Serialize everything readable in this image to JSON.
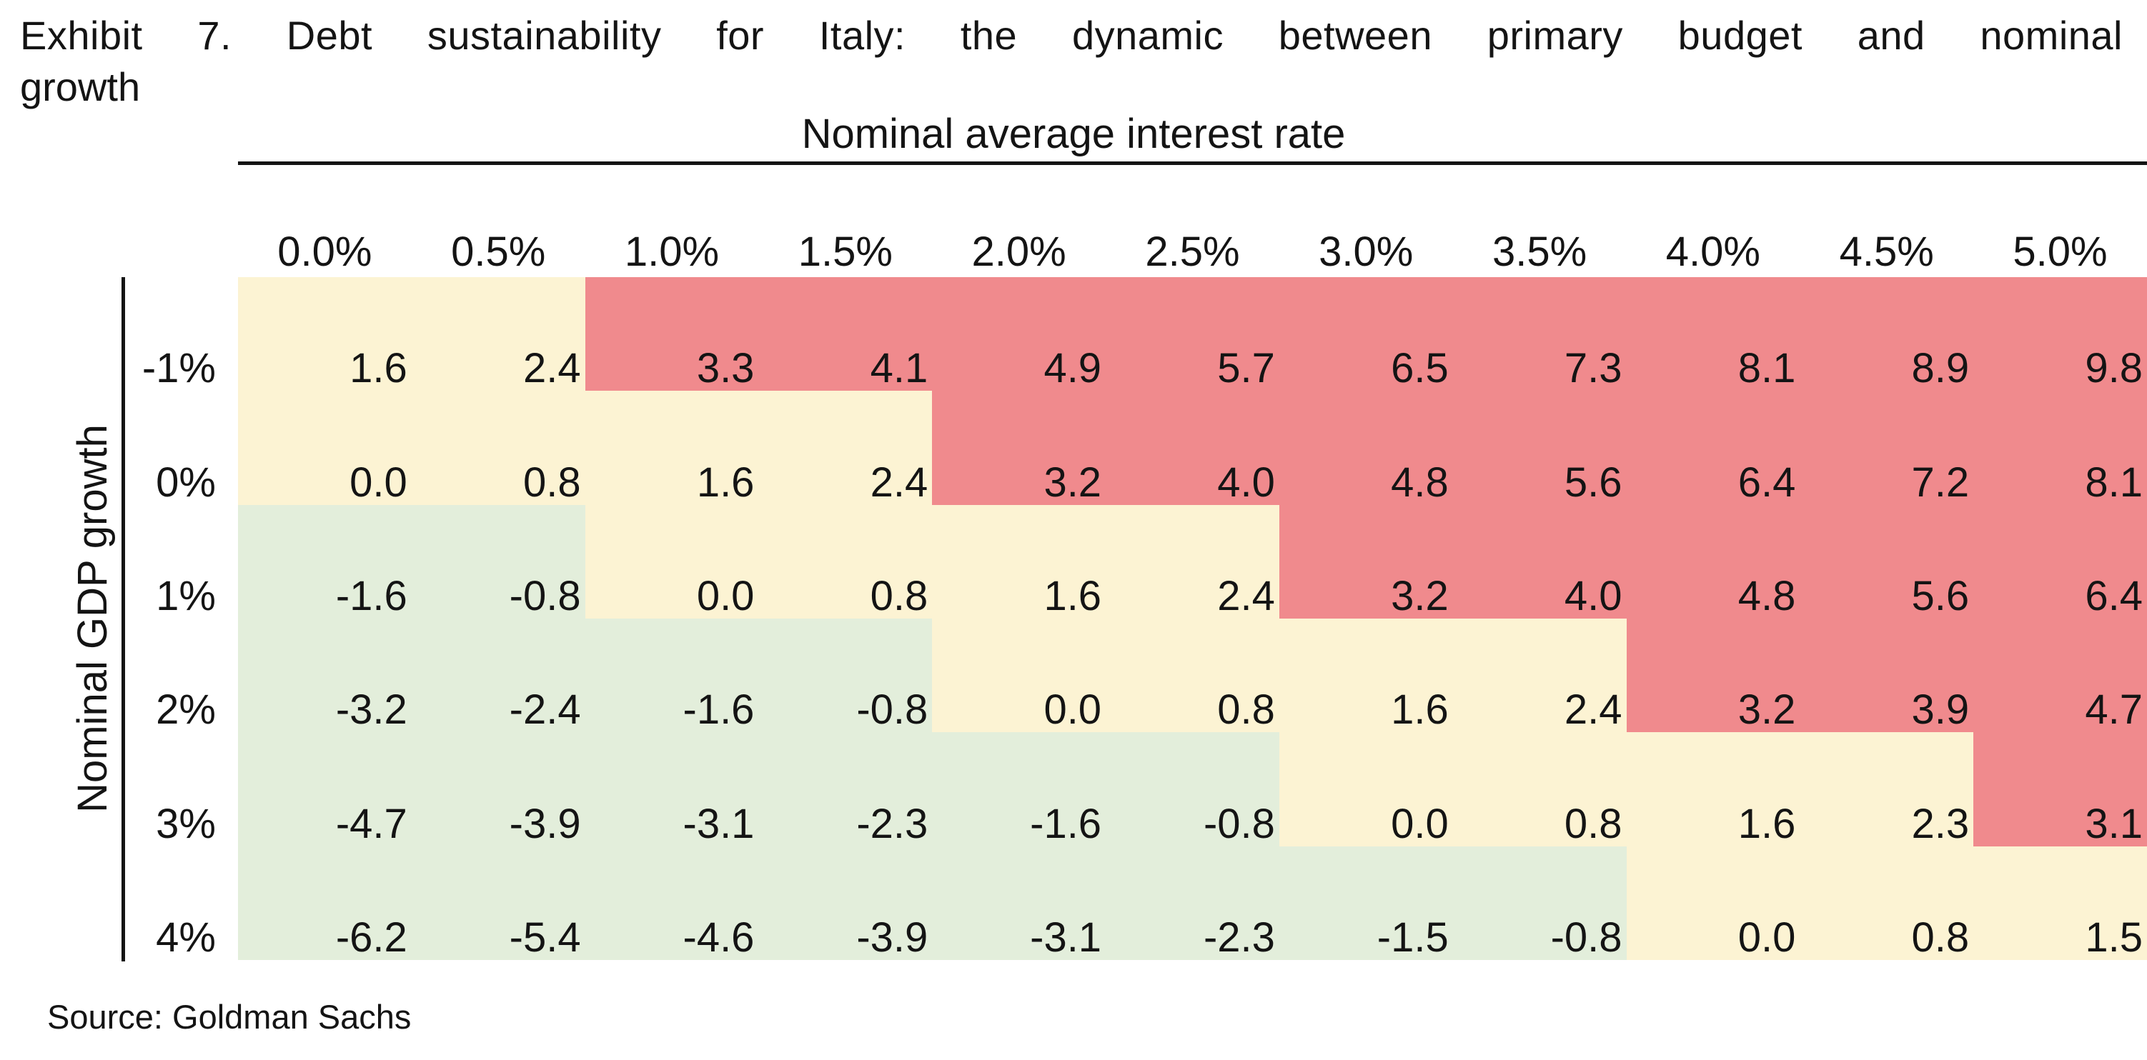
{
  "title": {
    "line1": "Exhibit 7. Debt sustainability for Italy: the dynamic between primary budget and nominal",
    "line2": "growth",
    "full": "Exhibit 7. Debt sustainability for Italy: the dynamic between primary budget and nominal growth"
  },
  "axes": {
    "top_label": "Nominal average interest rate",
    "left_label": "Nominal GDP growth"
  },
  "source": "Source: Goldman Sachs",
  "palette": {
    "red": "#f08a8d",
    "yellow": "#fcf3d3",
    "green": "#e3eedb",
    "rule": "#141414",
    "text": "#141414",
    "background": "#ffffff"
  },
  "chart_data": {
    "type": "heatmap",
    "title": "Exhibit 7. Debt sustainability for Italy: the dynamic between primary budget and nominal growth",
    "x_label": "Nominal average interest rate",
    "y_label": "Nominal GDP growth",
    "columns": [
      "0.0%",
      "0.5%",
      "1.0%",
      "1.5%",
      "2.0%",
      "2.5%",
      "3.0%",
      "3.5%",
      "4.0%",
      "4.5%",
      "5.0%"
    ],
    "rows": [
      "-1%",
      "0%",
      "1%",
      "2%",
      "3%",
      "4%"
    ],
    "values": [
      [
        1.6,
        2.4,
        3.3,
        4.1,
        4.9,
        5.7,
        6.5,
        7.3,
        8.1,
        8.9,
        9.8
      ],
      [
        0.0,
        0.8,
        1.6,
        2.4,
        3.2,
        4.0,
        4.8,
        5.6,
        6.4,
        7.2,
        8.1
      ],
      [
        -1.6,
        -0.8,
        0.0,
        0.8,
        1.6,
        2.4,
        3.2,
        4.0,
        4.8,
        5.6,
        6.4
      ],
      [
        -3.2,
        -2.4,
        -1.6,
        -0.8,
        0.0,
        0.8,
        1.6,
        2.4,
        3.2,
        3.9,
        4.7
      ],
      [
        -4.7,
        -3.9,
        -3.1,
        -2.3,
        -1.6,
        -0.8,
        0.0,
        0.8,
        1.6,
        2.3,
        3.1
      ],
      [
        -6.2,
        -5.4,
        -4.6,
        -3.9,
        -3.1,
        -2.3,
        -1.5,
        -0.8,
        0.0,
        0.8,
        1.5
      ]
    ],
    "values_display": [
      [
        "1.6",
        "2.4",
        "3.3",
        "4.1",
        "4.9",
        "5.7",
        "6.5",
        "7.3",
        "8.1",
        "8.9",
        "9.8"
      ],
      [
        "0.0",
        "0.8",
        "1.6",
        "2.4",
        "3.2",
        "4.0",
        "4.8",
        "5.6",
        "6.4",
        "7.2",
        "8.1"
      ],
      [
        "-1.6",
        "-0.8",
        "0.0",
        "0.8",
        "1.6",
        "2.4",
        "3.2",
        "4.0",
        "4.8",
        "5.6",
        "6.4"
      ],
      [
        "-3.2",
        "-2.4",
        "-1.6",
        "-0.8",
        "0.0",
        "0.8",
        "1.6",
        "2.4",
        "3.2",
        "3.9",
        "4.7"
      ],
      [
        "-4.7",
        "-3.9",
        "-3.1",
        "-2.3",
        "-1.6",
        "-0.8",
        "0.0",
        "0.8",
        "1.6",
        "2.3",
        "3.1"
      ],
      [
        "-6.2",
        "-5.4",
        "-4.6",
        "-3.9",
        "-3.1",
        "-2.3",
        "-1.5",
        "-0.8",
        "0.0",
        "0.8",
        "1.5"
      ]
    ],
    "zones": [
      [
        "yellow",
        "yellow",
        "red",
        "red",
        "red",
        "red",
        "red",
        "red",
        "red",
        "red",
        "red"
      ],
      [
        "yellow",
        "yellow",
        "yellow",
        "yellow",
        "red",
        "red",
        "red",
        "red",
        "red",
        "red",
        "red"
      ],
      [
        "green",
        "green",
        "yellow",
        "yellow",
        "yellow",
        "yellow",
        "red",
        "red",
        "red",
        "red",
        "red"
      ],
      [
        "green",
        "green",
        "green",
        "green",
        "yellow",
        "yellow",
        "yellow",
        "yellow",
        "red",
        "red",
        "red"
      ],
      [
        "green",
        "green",
        "green",
        "green",
        "green",
        "green",
        "yellow",
        "yellow",
        "yellow",
        "yellow",
        "red"
      ],
      [
        "green",
        "green",
        "green",
        "green",
        "green",
        "green",
        "green",
        "green",
        "yellow",
        "yellow",
        "yellow"
      ]
    ],
    "zone_rule": {
      "green": "value < 0",
      "yellow": "0 <= value < 3",
      "red": "value >= 3"
    },
    "legend_position": "none",
    "grid": "off",
    "source": "Source: Goldman Sachs"
  }
}
